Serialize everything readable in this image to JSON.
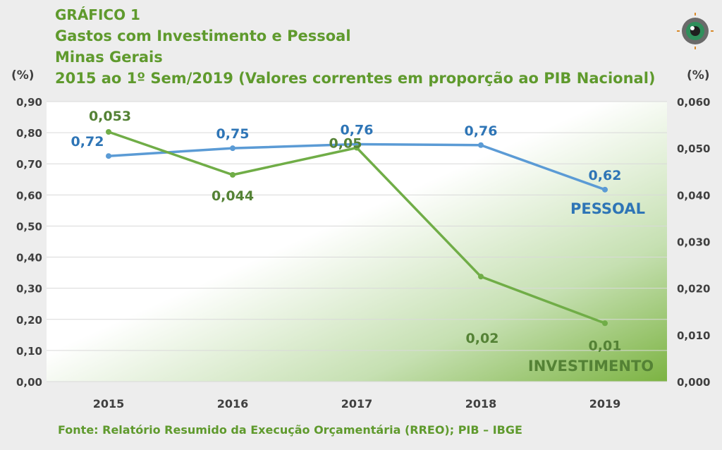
{
  "header": {
    "line1": "GRÁFICO 1",
    "line2": "Gastos com Investimento e Pessoal",
    "line3": "Minas Gerais",
    "line4": "2015 ao 1º Sem/2019 (Valores correntes em proporção ao PIB Nacional)"
  },
  "source": "Fonte: Relatório Resumido da Execução Orçamentária (RREO); PIB – IBGE",
  "logo_icon": "eye-target-icon",
  "colors": {
    "pessoal": "#5b9bd5",
    "pessoal_label": "#2e75b6",
    "investimento": "#70ad47",
    "investimento_label": "#548235",
    "title": "#5f9a2d"
  },
  "chart_data": {
    "type": "line",
    "categories": [
      "2015",
      "2016",
      "2017",
      "2018",
      "2019"
    ],
    "left_axis": {
      "unit": "(%)",
      "ylim": [
        0,
        0.9
      ],
      "ticks": [
        "0,00",
        "0,10",
        "0,20",
        "0,30",
        "0,40",
        "0,50",
        "0,60",
        "0,70",
        "0,80",
        "0,90"
      ]
    },
    "right_axis": {
      "unit": "(%)",
      "ylim": [
        0,
        0.06
      ],
      "ticks": [
        "0,000",
        "0,010",
        "0,020",
        "0,030",
        "0,040",
        "0,050",
        "0,060"
      ]
    },
    "series": [
      {
        "name": "PESSOAL",
        "axis": "left",
        "values": [
          0.725,
          0.75,
          0.763,
          0.76,
          0.617
        ],
        "labels": [
          "0,72",
          "0,75",
          "0,76",
          "0,76",
          "0,62"
        ]
      },
      {
        "name": "INVESTIMENTO",
        "axis": "right",
        "values": [
          0.0535,
          0.0443,
          0.0501,
          0.0225,
          0.0125
        ],
        "labels": [
          "0,053",
          "0,044",
          "0,05",
          "0,02",
          "0,01"
        ]
      }
    ],
    "grid": true,
    "legend": "inline-end-of-series"
  }
}
